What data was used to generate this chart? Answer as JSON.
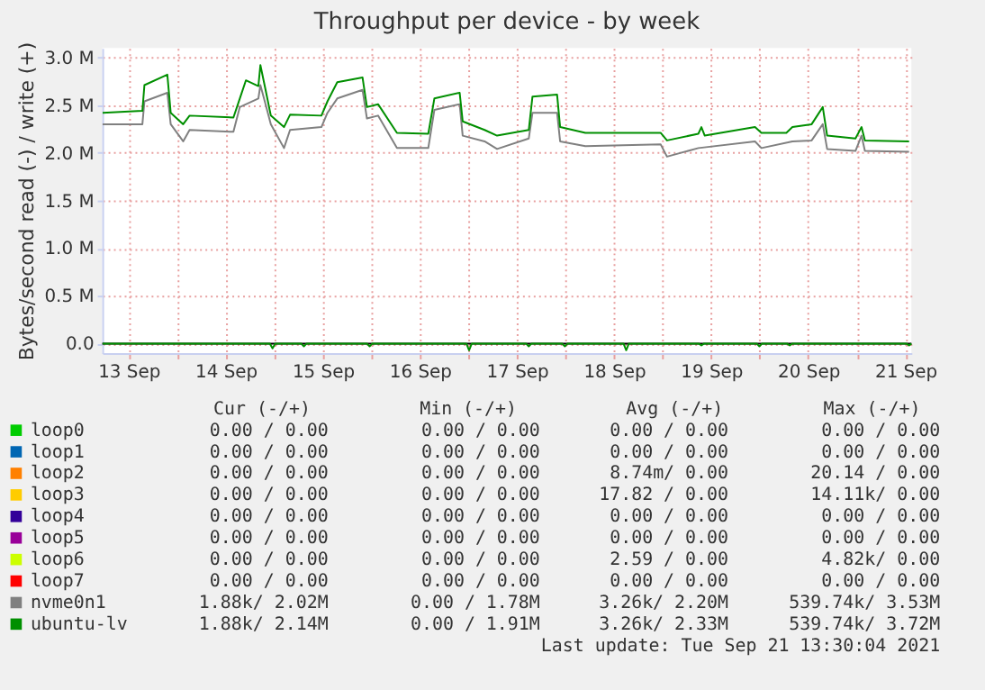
{
  "chart_data": {
    "type": "line",
    "title": "Throughput per device - by week",
    "ylabel": "Bytes/second read (-) / write (+)",
    "xlim": [
      "2021-09-13T05:30",
      "2021-09-21T13:30"
    ],
    "xticks": [
      {
        "value": "2021-09-13T12:00",
        "label": "13 Sep"
      },
      {
        "value": "2021-09-14T12:00",
        "label": "14 Sep"
      },
      {
        "value": "2021-09-15T12:00",
        "label": "15 Sep"
      },
      {
        "value": "2021-09-16T12:00",
        "label": "16 Sep"
      },
      {
        "value": "2021-09-17T12:00",
        "label": "17 Sep"
      },
      {
        "value": "2021-09-18T12:00",
        "label": "18 Sep"
      },
      {
        "value": "2021-09-19T12:00",
        "label": "19 Sep"
      },
      {
        "value": "2021-09-20T12:00",
        "label": "20 Sep"
      },
      {
        "value": "2021-09-21T12:00",
        "label": "21 Sep"
      },
      {
        "value": "2021-09-14T00:00",
        "label": null
      },
      {
        "value": "2021-09-15T00:00",
        "label": null
      },
      {
        "value": "2021-09-16T00:00",
        "label": null
      },
      {
        "value": "2021-09-17T00:00",
        "label": null
      },
      {
        "value": "2021-09-18T00:00",
        "label": null
      },
      {
        "value": "2021-09-19T00:00",
        "label": null
      },
      {
        "value": "2021-09-20T00:00",
        "label": null
      },
      {
        "value": "2021-09-21T00:00",
        "label": null
      }
    ],
    "ylim": [
      -0.1,
      3.1
    ],
    "yticks": [
      {
        "value": 0,
        "label": "0.0"
      },
      {
        "value": 0.5,
        "label": "0.5 M"
      },
      {
        "value": 1,
        "label": "1.0 M"
      },
      {
        "value": 1.5,
        "label": "1.5 M"
      },
      {
        "value": 2,
        "label": "2.0 M"
      },
      {
        "value": 2.5,
        "label": "2.5 M"
      },
      {
        "value": 3,
        "label": "3.0 M"
      }
    ],
    "grid": true,
    "legend": "bottom",
    "marker": "none",
    "line_style": "solid",
    "series": [
      {
        "name": "loop0",
        "color": "#00cc00"
      },
      {
        "name": "loop1",
        "color": "#0066b3"
      },
      {
        "name": "loop2",
        "color": "#ff8000"
      },
      {
        "name": "loop3",
        "color": "#ffcc00"
      },
      {
        "name": "loop4",
        "color": "#330099"
      },
      {
        "name": "loop5",
        "color": "#990099"
      },
      {
        "name": "loop6",
        "color": "#ccff00"
      },
      {
        "name": "loop7",
        "color": "#ff0000"
      },
      {
        "name": "nvme0n1",
        "color": "#808080",
        "x": [
          "2021-09-13T05:35",
          "2021-09-13T15:25",
          "2021-09-13T15:55",
          "2021-09-13T21:35",
          "2021-09-13T22:25",
          "2021-09-14T01:30",
          "2021-09-14T03:05",
          "2021-09-14T13:55",
          "2021-09-14T15:30",
          "2021-09-14T20:05",
          "2021-09-14T20:35",
          "2021-09-14T21:40",
          "2021-09-14T23:10",
          "2021-09-15T02:25",
          "2021-09-15T03:55",
          "2021-09-15T11:40",
          "2021-09-15T13:10",
          "2021-09-15T15:35",
          "2021-09-15T21:50",
          "2021-09-15T22:55",
          "2021-09-16T01:40",
          "2021-09-16T06:20",
          "2021-09-16T14:05",
          "2021-09-16T15:35",
          "2021-09-16T21:50",
          "2021-09-16T22:35",
          "2021-09-17T04:00",
          "2021-09-17T07:05",
          "2021-09-17T14:55",
          "2021-09-17T15:50",
          "2021-09-17T21:55",
          "2021-09-17T22:40",
          "2021-09-18T04:55",
          "2021-09-18T23:30",
          "2021-09-19T01:05",
          "2021-09-19T08:50",
          "2021-09-19T22:50",
          "2021-09-20T00:25",
          "2021-09-20T08:05",
          "2021-09-20T12:50",
          "2021-09-20T15:35",
          "2021-09-20T16:40",
          "2021-09-20T23:40",
          "2021-09-21T01:10",
          "2021-09-21T02:00",
          "2021-09-21T12:55"
        ],
        "values": [
          2.3,
          2.3,
          2.54,
          2.63,
          2.3,
          2.12,
          2.24,
          2.22,
          2.48,
          2.57,
          2.71,
          2.54,
          2.3,
          2.05,
          2.24,
          2.27,
          2.42,
          2.57,
          2.66,
          2.36,
          2.39,
          2.05,
          2.05,
          2.45,
          2.51,
          2.18,
          2.12,
          2.04,
          2.15,
          2.42,
          2.42,
          2.12,
          2.07,
          2.09,
          1.96,
          2.05,
          2.12,
          2.05,
          2.12,
          2.13,
          2.3,
          2.04,
          2.02,
          2.18,
          2.02,
          2.01
        ]
      },
      {
        "name": "ubuntu-lv",
        "color": "#008f00",
        "x": [
          "2021-09-13T05:35",
          "2021-09-13T15:25",
          "2021-09-13T15:55",
          "2021-09-13T21:35",
          "2021-09-13T22:25",
          "2021-09-14T01:30",
          "2021-09-14T03:05",
          "2021-09-14T13:55",
          "2021-09-14T15:30",
          "2021-09-14T17:00",
          "2021-09-14T20:05",
          "2021-09-14T20:35",
          "2021-09-14T21:40",
          "2021-09-14T23:10",
          "2021-09-15T02:25",
          "2021-09-15T03:55",
          "2021-09-15T11:40",
          "2021-09-15T13:10",
          "2021-09-15T15:35",
          "2021-09-15T21:50",
          "2021-09-15T22:55",
          "2021-09-16T01:40",
          "2021-09-16T06:20",
          "2021-09-16T14:05",
          "2021-09-16T15:35",
          "2021-09-16T21:50",
          "2021-09-16T22:35",
          "2021-09-17T04:00",
          "2021-09-17T07:05",
          "2021-09-17T14:55",
          "2021-09-17T15:50",
          "2021-09-17T21:55",
          "2021-09-17T22:40",
          "2021-09-18T04:55",
          "2021-09-18T23:30",
          "2021-09-19T01:05",
          "2021-09-19T08:50",
          "2021-09-19T09:35",
          "2021-09-19T10:25",
          "2021-09-19T22:50",
          "2021-09-20T00:25",
          "2021-09-20T06:35",
          "2021-09-20T08:05",
          "2021-09-20T12:50",
          "2021-09-20T15:35",
          "2021-09-20T16:40",
          "2021-09-20T23:40",
          "2021-09-21T01:10",
          "2021-09-21T02:00",
          "2021-09-21T12:55"
        ],
        "values": [
          2.42,
          2.44,
          2.71,
          2.82,
          2.42,
          2.3,
          2.39,
          2.37,
          2.57,
          2.76,
          2.7,
          2.92,
          2.7,
          2.39,
          2.27,
          2.4,
          2.39,
          2.54,
          2.74,
          2.79,
          2.48,
          2.51,
          2.21,
          2.2,
          2.57,
          2.63,
          2.33,
          2.24,
          2.18,
          2.24,
          2.59,
          2.61,
          2.27,
          2.21,
          2.21,
          2.13,
          2.2,
          2.27,
          2.18,
          2.27,
          2.21,
          2.21,
          2.27,
          2.3,
          2.48,
          2.18,
          2.15,
          2.27,
          2.13,
          2.12
        ]
      },
      {
        "color": "#008f00",
        "x": [
          "2021-09-13T05:35",
          "2021-09-14T22:55",
          "2021-09-14T23:35",
          "2021-09-15T00:15",
          "2021-09-15T06:40",
          "2021-09-15T07:20",
          "2021-09-15T08:00",
          "2021-09-15T22:55",
          "2021-09-15T23:35",
          "2021-09-16T00:15",
          "2021-09-16T23:30",
          "2021-09-17T00:10",
          "2021-09-17T00:50",
          "2021-09-17T14:15",
          "2021-09-17T14:55",
          "2021-09-17T15:35",
          "2021-09-17T23:10",
          "2021-09-17T23:50",
          "2021-09-18T00:30",
          "2021-09-18T14:20",
          "2021-09-18T15:00",
          "2021-09-18T15:40",
          "2021-09-19T08:55",
          "2021-09-19T09:35",
          "2021-09-19T10:15",
          "2021-09-19T23:15",
          "2021-09-19T23:55",
          "2021-09-20T00:35",
          "2021-09-20T06:45",
          "2021-09-20T07:25",
          "2021-09-20T08:05",
          "2021-09-21T12:15",
          "2021-09-21T12:55",
          "2021-09-21T13:30"
        ],
        "values": [
          0,
          0,
          -0.05,
          0,
          0,
          -0.03,
          0,
          0,
          -0.03,
          0,
          0,
          -0.07,
          0,
          0,
          -0.03,
          0,
          0,
          -0.03,
          0,
          0,
          -0.07,
          0,
          0,
          -0.02,
          0,
          0,
          -0.03,
          0,
          0,
          -0.02,
          0,
          0,
          -0.02,
          0
        ]
      }
    ],
    "annotations": [
      "Cur (-/+)",
      "Min (-/+)",
      "Avg (-/+)",
      "Max (-/+)",
      "0.00 /   0.00",
      "0.00 /   0.00",
      "0.00 /   0.00",
      "0.00 /   0.00",
      "0.00 /   0.00",
      "0.00 /   0.00",
      "0.00 /   0.00",
      "0.00 /   0.00",
      "0.00 /   0.00",
      "0.00 /   0.00",
      "8.74m/   0.00",
      "20.14 /   0.00",
      "0.00 /   0.00",
      "0.00 /   0.00",
      "17.82 /   0.00",
      "14.11k/   0.00",
      "0.00 /   0.00",
      "0.00 /   0.00",
      "0.00 /   0.00",
      "0.00 /   0.00",
      "0.00 /   0.00",
      "0.00 /   0.00",
      "0.00 /   0.00",
      "0.00 /   0.00",
      "0.00 /   0.00",
      "0.00 /   0.00",
      "2.59 /   0.00",
      "4.82k/   0.00",
      "0.00 /   0.00",
      "0.00 /   0.00",
      "0.00 /   0.00",
      "0.00 /   0.00",
      "1.88k/   2.02M",
      "0.00 /   1.78M",
      "3.26k/   2.20M",
      "539.74k/   3.53M",
      "1.88k/   2.14M",
      "0.00 /   1.91M",
      "3.26k/   2.33M",
      "539.74k/   3.72M",
      "Last update: Tue Sep 21 13:30:04 2021"
    ]
  }
}
